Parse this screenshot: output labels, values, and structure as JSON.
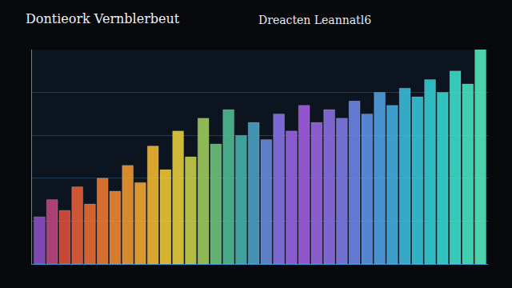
{
  "chart_data": {
    "type": "bar",
    "title": "Dontieork Vernblerbeut",
    "subtitle": "Dreacten Leannatl6",
    "categories": [
      null,
      null,
      null,
      null,
      null,
      null,
      null,
      null,
      null,
      null,
      null,
      null,
      null,
      null,
      null,
      null,
      null,
      null,
      null,
      null,
      null,
      null,
      null,
      null,
      null,
      null,
      null,
      null,
      null,
      null,
      null,
      null,
      null,
      null,
      null,
      null
    ],
    "values": [
      22,
      30,
      25,
      36,
      28,
      40,
      34,
      46,
      38,
      55,
      44,
      62,
      50,
      68,
      56,
      72,
      60,
      66,
      58,
      70,
      62,
      74,
      66,
      72,
      68,
      76,
      70,
      80,
      74,
      82,
      78,
      86,
      80,
      90,
      84,
      100
    ],
    "colors": [
      "#8e4fc9",
      "#c2477f",
      "#e0513c",
      "#e8603a",
      "#ee6d35",
      "#f07c32",
      "#f38b30",
      "#f59a2e",
      "#f6aa2e",
      "#f6ba30",
      "#f4c935",
      "#e9d23c",
      "#c9d44a",
      "#9fcf5c",
      "#6fc77a",
      "#4fbf95",
      "#45b5b0",
      "#4ba4c8",
      "#6a8de0",
      "#8a73e8",
      "#9b63e6",
      "#a35fe2",
      "#9a66e4",
      "#8d70e6",
      "#7f7ce8",
      "#6f88ea",
      "#5f95ea",
      "#50a3e8",
      "#44b0e4",
      "#3bbde0",
      "#36c8dc",
      "#33d2d8",
      "#36dbd2",
      "#3ee3cc",
      "#48e8c4",
      "#55ecbe"
    ],
    "ylim": [
      0,
      100
    ],
    "yticks": [
      0,
      20,
      40,
      60,
      80,
      100
    ],
    "grid": true,
    "tick_labels": false
  }
}
